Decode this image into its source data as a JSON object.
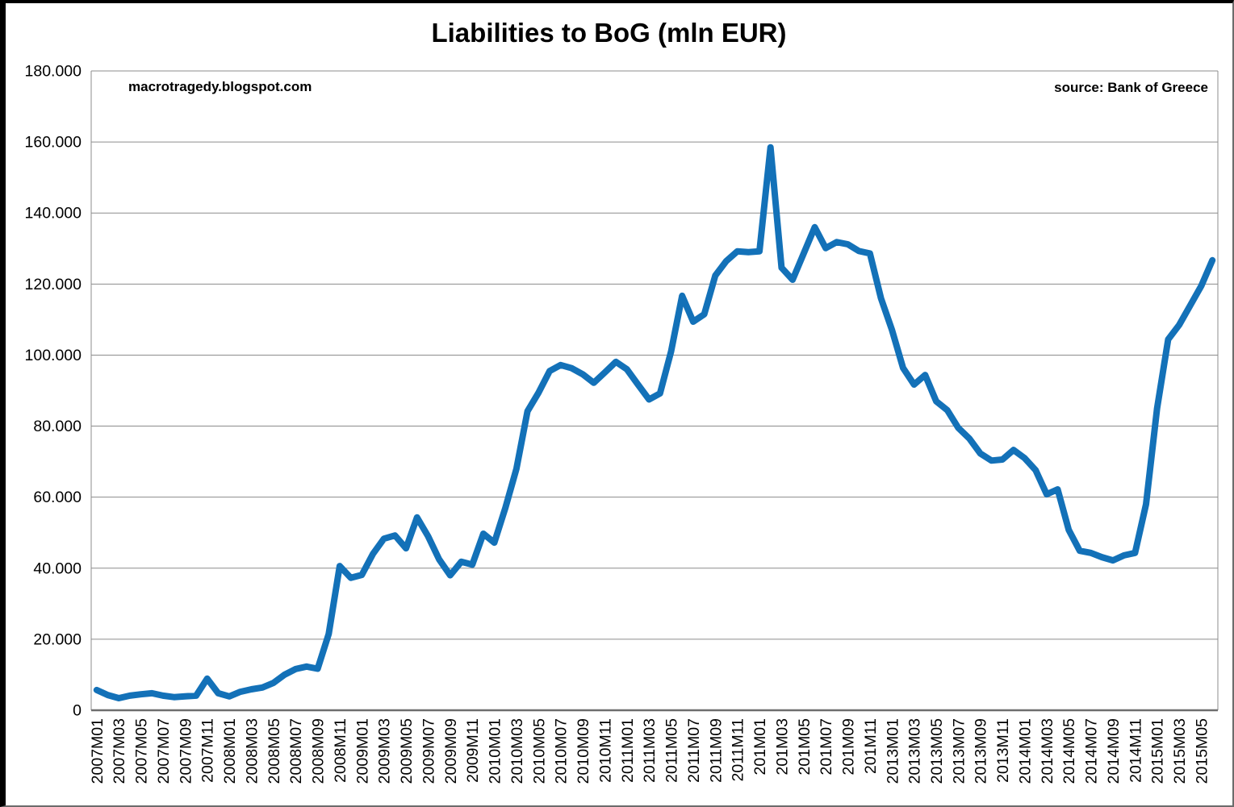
{
  "title": "Liabilities to BoG (mln EUR)",
  "annotations": {
    "watermark": "macrotragedy.blogspot.com",
    "source": "source: Bank of Greece"
  },
  "colors": {
    "line": "#1371B8",
    "gridline": "#8C8C8C",
    "axis": "#6E6E6E",
    "text": "#000000"
  },
  "chart_data": {
    "type": "line",
    "title": "Liabilities to BoG (mln EUR)",
    "unit": "mln EUR",
    "grid": true,
    "legend": null,
    "ylim": [
      0,
      180000
    ],
    "y_tick_labels": [
      "0",
      "20.000",
      "40.000",
      "60.000",
      "80.000",
      "100.000",
      "120.000",
      "140.000",
      "160.000",
      "180.000"
    ],
    "x_tick_labels": [
      "2007M01",
      "2007M03",
      "2007M05",
      "2007M07",
      "2007M09",
      "2007M11",
      "2008M01",
      "2008M03",
      "2008M05",
      "2008M07",
      "2008M09",
      "2008M11",
      "2009M01",
      "2009M03",
      "2009M05",
      "2009M07",
      "2009M09",
      "2009M11",
      "2010M01",
      "2010M03",
      "2010M05",
      "2010M07",
      "2010M09",
      "2010M11",
      "2011M01",
      "2011M03",
      "2011M05",
      "2011M07",
      "2011M09",
      "2011M11",
      "201M01",
      "201M03",
      "201M05",
      "201M07",
      "201M09",
      "201M11",
      "2013M01",
      "2013M03",
      "2013M05",
      "2013M07",
      "2013M09",
      "2013M11",
      "2014M01",
      "2014M03",
      "2014M05",
      "2014M07",
      "2014M09",
      "2014M11",
      "2015M01",
      "2015M03",
      "2015M05"
    ],
    "x": [
      "2007M01",
      "2007M02",
      "2007M03",
      "2007M04",
      "2007M05",
      "2007M06",
      "2007M07",
      "2007M08",
      "2007M09",
      "2007M10",
      "2007M11",
      "2007M12",
      "2008M01",
      "2008M02",
      "2008M03",
      "2008M04",
      "2008M05",
      "2008M06",
      "2008M07",
      "2008M08",
      "2008M09",
      "2008M10",
      "2008M11",
      "2008M12",
      "2009M01",
      "2009M02",
      "2009M03",
      "2009M04",
      "2009M05",
      "2009M06",
      "2009M07",
      "2009M08",
      "2009M09",
      "2009M10",
      "2009M11",
      "2009M12",
      "2010M01",
      "2010M02",
      "2010M03",
      "2010M04",
      "2010M05",
      "2010M06",
      "2010M07",
      "2010M08",
      "2010M09",
      "2010M10",
      "2010M11",
      "2010M12",
      "2011M01",
      "2011M02",
      "2011M03",
      "2011M04",
      "2011M05",
      "2011M06",
      "2011M07",
      "2011M08",
      "2011M09",
      "2011M10",
      "2011M11",
      "2011M12",
      "2012M01",
      "2012M02",
      "2012M03",
      "2012M04",
      "2012M05",
      "2012M06",
      "2012M07",
      "2012M08",
      "2012M09",
      "2012M10",
      "2012M11",
      "2012M12",
      "2013M01",
      "2013M02",
      "2013M03",
      "2013M04",
      "2013M05",
      "2013M06",
      "2013M07",
      "2013M08",
      "2013M09",
      "2013M10",
      "2013M11",
      "2013M12",
      "2014M01",
      "2014M02",
      "2014M03",
      "2014M04",
      "2014M05",
      "2014M06",
      "2014M07",
      "2014M08",
      "2014M09",
      "2014M10",
      "2014M11",
      "2014M12",
      "2015M01",
      "2015M02",
      "2015M03",
      "2015M04",
      "2015M05",
      "2015M06"
    ],
    "values": [
      5700,
      4300,
      3400,
      4100,
      4500,
      4800,
      4100,
      3700,
      3900,
      4100,
      8900,
      4800,
      3900,
      5200,
      5900,
      6400,
      7700,
      10000,
      11600,
      12300,
      11700,
      21500,
      40600,
      37300,
      38100,
      44000,
      48300,
      49200,
      45600,
      54300,
      49000,
      42500,
      38000,
      41800,
      41000,
      49700,
      47200,
      57000,
      68000,
      84200,
      89400,
      95500,
      97200,
      96300,
      94600,
      92200,
      95100,
      98100,
      96000,
      91700,
      87500,
      89200,
      101000,
      116700,
      109400,
      111500,
      122400,
      126500,
      129200,
      129000,
      129200,
      158500,
      124600,
      121200,
      128600,
      136000,
      130100,
      131800,
      131200,
      129300,
      128600,
      116000,
      107000,
      96400,
      91700,
      94400,
      87000,
      84500,
      79500,
      76500,
      72300,
      70300,
      70600,
      73300,
      71000,
      67600,
      60800,
      62200,
      50800,
      44900,
      44300,
      43100,
      42200,
      43600,
      44300,
      58000,
      85000,
      104400,
      108500,
      114000,
      119500,
      126700
    ]
  }
}
